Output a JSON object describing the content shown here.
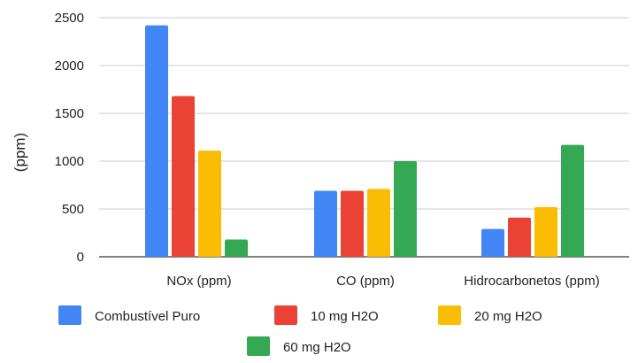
{
  "chart_data": {
    "type": "bar",
    "title": "",
    "xlabel": "",
    "ylabel": "(ppm)",
    "categories": [
      "NOx (ppm)",
      "CO (ppm)",
      "Hidrocarbonetos (ppm)"
    ],
    "series": [
      {
        "name": "Combustível Puro",
        "color": "#4285F4",
        "values": [
          2420,
          690,
          290
        ]
      },
      {
        "name": "10 mg H2O",
        "color": "#EA4335",
        "values": [
          1680,
          690,
          410
        ]
      },
      {
        "name": "20 mg H2O",
        "color": "#FBBC04",
        "values": [
          1110,
          710,
          520
        ]
      },
      {
        "name": "60 mg H2O",
        "color": "#34A853",
        "values": [
          180,
          1000,
          1170
        ]
      }
    ],
    "ylim": [
      0,
      2500
    ],
    "yticks": [
      "0",
      "500",
      "1000",
      "1500",
      "2000",
      "2500"
    ],
    "grid": true,
    "legend": "bottom"
  }
}
